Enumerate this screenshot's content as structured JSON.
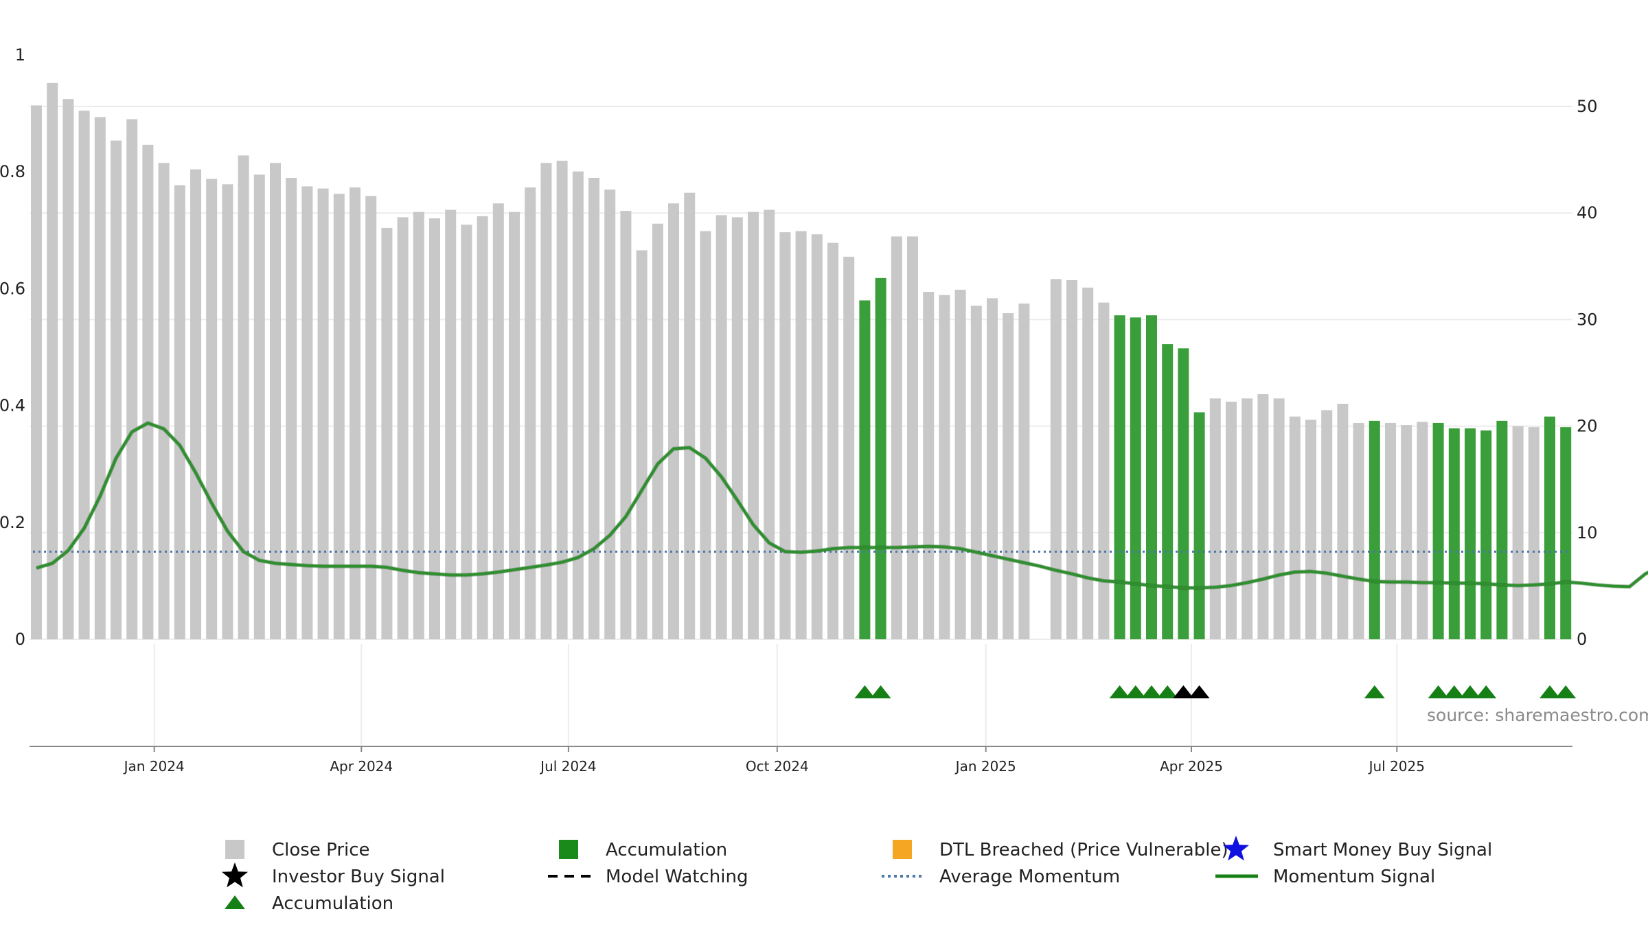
{
  "colors": {
    "close_bar": "#c8c8c8",
    "accumulation_bar": "#3a9e3a",
    "accumulation_marker": "#168016",
    "investor_marker": "#000000",
    "momentum_line": "#2f8f2f",
    "average_line": "#4a78a8",
    "dtl_marker": "#f5a623",
    "smart_money_marker": "#1010e0",
    "grid": "#ececec",
    "axis": "#888888"
  },
  "source": "source: sharemaestro.com",
  "chart_data": {
    "type": "bar",
    "x_axis": {
      "ticks": [
        "Jan 2024",
        "Apr 2024",
        "Jul 2024",
        "Oct 2024",
        "Jan 2025",
        "Apr 2025",
        "Jul 2025"
      ],
      "tick_bar_positions": [
        7.4,
        20.4,
        33.4,
        46.5,
        59.6,
        72.5,
        85.4
      ]
    },
    "left_axis": {
      "ylim": [
        0,
        1
      ],
      "ticks": [
        "0",
        "0.2",
        "0.4",
        "0.6",
        "0.8",
        "1"
      ],
      "tick_values": [
        0,
        0.2,
        0.4,
        0.6,
        0.8,
        1
      ]
    },
    "right_axis": {
      "ylim": [
        0,
        55
      ],
      "ticks": [
        "0",
        "10",
        "20",
        "30",
        "40",
        "50"
      ],
      "tick_values": [
        0,
        10,
        20,
        30,
        40,
        50
      ]
    },
    "grid": true,
    "legend_position": "bottom",
    "series": [
      {
        "name": "Close Price",
        "axis": "right",
        "values": [
          50.1,
          52.2,
          50.7,
          49.6,
          49.0,
          46.8,
          48.8,
          46.4,
          44.7,
          42.6,
          44.1,
          43.2,
          42.7,
          45.4,
          43.6,
          44.7,
          43.3,
          42.5,
          42.3,
          41.8,
          42.4,
          41.6,
          38.6,
          39.6,
          40.1,
          39.5,
          40.3,
          38.9,
          39.7,
          40.9,
          40.1,
          42.4,
          44.7,
          44.9,
          43.9,
          43.3,
          42.2,
          40.2,
          36.5,
          39.0,
          40.9,
          41.9,
          38.3,
          39.8,
          39.6,
          40.1,
          40.3,
          38.2,
          38.3,
          38.0,
          37.2,
          35.9,
          31.8,
          33.9,
          37.8,
          37.8,
          32.6,
          32.3,
          32.8,
          31.3,
          32.0,
          30.6,
          31.5,
          null,
          33.8,
          33.7,
          33.0,
          31.6,
          30.4,
          30.2,
          30.4,
          27.7,
          27.3,
          21.3,
          22.6,
          22.3,
          22.6,
          23.0,
          22.6,
          20.9,
          20.6,
          21.5,
          22.1,
          20.3,
          20.5,
          20.3,
          20.1,
          20.4,
          20.3,
          19.8,
          19.8,
          19.6,
          20.5,
          20.0,
          19.9,
          20.9,
          19.9
        ],
        "accumulation_indices": [
          52,
          53,
          68,
          69,
          70,
          71,
          72,
          73,
          84,
          88,
          89,
          90,
          91,
          92,
          95,
          96
        ]
      },
      {
        "name": "Momentum Signal",
        "axis": "left",
        "values": [
          0.122,
          0.13,
          0.152,
          0.19,
          0.245,
          0.31,
          0.355,
          0.37,
          0.36,
          0.332,
          0.285,
          0.233,
          0.185,
          0.15,
          0.135,
          0.13,
          0.128,
          0.126,
          0.125,
          0.125,
          0.125,
          0.125,
          0.123,
          0.118,
          0.114,
          0.112,
          0.11,
          0.11,
          0.112,
          0.115,
          0.119,
          0.123,
          0.127,
          0.132,
          0.14,
          0.155,
          0.178,
          0.21,
          0.255,
          0.3,
          0.326,
          0.328,
          0.31,
          0.278,
          0.238,
          0.196,
          0.165,
          0.15,
          0.149,
          0.151,
          0.155,
          0.157,
          0.157,
          0.157,
          0.157,
          0.158,
          0.159,
          0.158,
          0.155,
          0.149,
          0.143,
          0.137,
          0.131,
          0.125,
          0.118,
          0.112,
          0.105,
          0.1,
          0.098,
          0.095,
          0.092,
          0.09,
          0.088,
          0.088,
          0.089,
          0.092,
          0.097,
          0.103,
          0.11,
          0.115,
          0.116,
          0.113,
          0.108,
          0.103,
          0.099,
          0.098,
          0.098,
          0.097,
          0.097,
          0.096,
          0.096,
          0.095,
          0.093,
          0.092,
          0.093,
          0.095,
          0.098,
          0.096,
          0.093,
          0.091,
          0.09,
          0.112,
          0.125
        ]
      },
      {
        "name": "Average Momentum",
        "axis": "left",
        "value": 0.15
      },
      {
        "name": "Accumulation",
        "marker": "triangle",
        "indices": [
          52,
          53,
          68,
          69,
          70,
          71,
          84,
          88,
          89,
          90,
          91,
          95,
          96
        ]
      },
      {
        "name": "Investor Buy Signal",
        "marker": "triangle",
        "indices": [
          72,
          73
        ]
      }
    ]
  },
  "legend": [
    {
      "label": "Close Price",
      "symbol": "square-gray"
    },
    {
      "label": "Accumulation",
      "symbol": "square-green"
    },
    {
      "label": "DTL Breached (Price Vulnerable)",
      "symbol": "square-orange"
    },
    {
      "label": "Smart Money Buy Signal",
      "symbol": "star-blue"
    },
    {
      "label": "Investor Buy Signal",
      "symbol": "star-black"
    },
    {
      "label": "Model Watching",
      "symbol": "dash-black"
    },
    {
      "label": "Average Momentum",
      "symbol": "dotted-blue"
    },
    {
      "label": "Momentum Signal",
      "symbol": "line-green"
    },
    {
      "label": "Accumulation",
      "symbol": "triangle-green"
    }
  ]
}
